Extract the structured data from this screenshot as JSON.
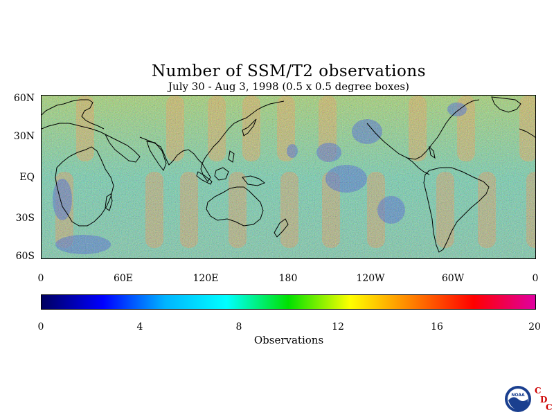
{
  "title": "Number of SSM/T2 observations",
  "subtitle": "July 30 - Aug 3, 1998 (0.5 x 0.5 degree boxes)",
  "lat_labels": [
    "60N",
    "30N",
    "EQ",
    "30S",
    "60S"
  ],
  "lon_labels": [
    "0",
    "60E",
    "120E",
    "180",
    "120W",
    "60W",
    "0"
  ],
  "colorbar": {
    "ticks": [
      "0",
      "4",
      "8",
      "12",
      "16",
      "20"
    ],
    "label": "Observations",
    "colors": [
      "#000060",
      "#0000ff",
      "#00b4ff",
      "#00ffff",
      "#00e000",
      "#ffff00",
      "#ff8000",
      "#ff0000",
      "#e000a0"
    ]
  },
  "logo": {
    "text": "NOAA",
    "letters": [
      "C",
      "D",
      "C"
    ],
    "letter_color": "#cc0000"
  },
  "chart_data": {
    "type": "heatmap",
    "title": "Number of SSM/T2 observations",
    "subtitle": "July 30 - Aug 3, 1998 (0.5 x 0.5 degree boxes)",
    "x_ticks": [
      "0",
      "60E",
      "120E",
      "180",
      "120W",
      "60W",
      "0"
    ],
    "y_ticks": [
      "60N",
      "30N",
      "EQ",
      "30S",
      "60S"
    ],
    "xlim": [
      0,
      360
    ],
    "ylim": [
      -60,
      60
    ],
    "value_range": [
      0,
      20
    ],
    "value_label": "Observations",
    "colorbar_ticks": [
      0,
      4,
      8,
      12,
      16,
      20
    ]
  }
}
